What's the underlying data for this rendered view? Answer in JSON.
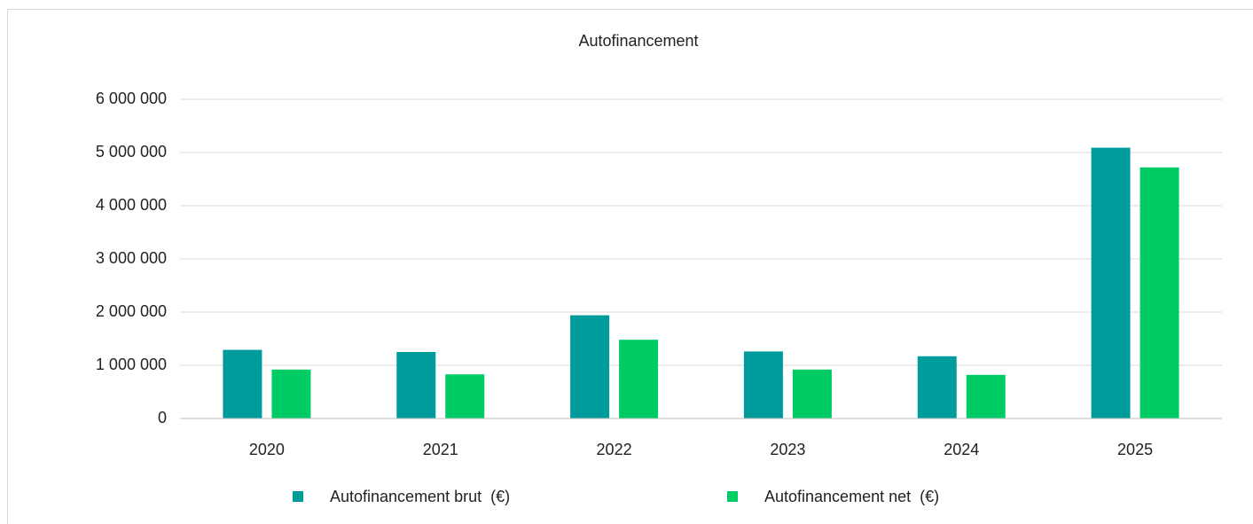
{
  "chart_data": {
    "type": "bar",
    "title": "Autofinancement",
    "categories": [
      "2020",
      "2021",
      "2022",
      "2023",
      "2024",
      "2025"
    ],
    "series": [
      {
        "name": "Autofinancement brut  (€)",
        "color": "#009b9b",
        "values": [
          1290000,
          1250000,
          1940000,
          1260000,
          1170000,
          5090000
        ]
      },
      {
        "name": "Autofinancement net  (€)",
        "color": "#00cc66",
        "values": [
          920000,
          830000,
          1480000,
          920000,
          820000,
          4720000
        ]
      }
    ],
    "ylim": [
      0,
      6000000
    ],
    "yticks": [
      0,
      {
        "value": 1000000,
        "label": "1 000 000"
      },
      {
        "value": 2000000,
        "label": "2 000 000"
      },
      {
        "value": 3000000,
        "label": "3 000 000"
      },
      {
        "value": 4000000,
        "label": "4 000 000"
      },
      {
        "value": 5000000,
        "label": "5 000 000"
      },
      {
        "value": 6000000,
        "label": "6 000 000"
      }
    ],
    "grid": true,
    "legend": "bottom"
  }
}
